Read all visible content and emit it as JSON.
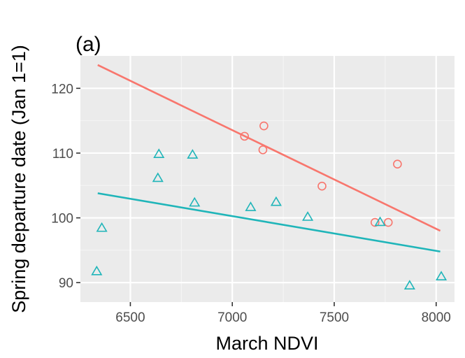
{
  "chart_data": {
    "type": "scatter",
    "title": "(a)",
    "xlabel": "March NDVI",
    "ylabel": "Spring departure date (Jan 1=1)",
    "xlim": [
      6255,
      8090
    ],
    "ylim": [
      87,
      125
    ],
    "x_ticks": [
      6500,
      7000,
      7500,
      8000
    ],
    "y_ticks": [
      90,
      100,
      110,
      120
    ],
    "x_tick_labels": [
      "6500",
      "7000",
      "7500",
      "8000"
    ],
    "y_tick_labels": [
      "90",
      "100",
      "110",
      "120"
    ],
    "grid": true,
    "legend": "none",
    "series": [
      {
        "marker": "circle",
        "color": "#F8766D",
        "points": [
          {
            "x": 7060,
            "y": 112.6
          },
          {
            "x": 7155,
            "y": 114.2
          },
          {
            "x": 7150,
            "y": 110.5
          },
          {
            "x": 7440,
            "y": 104.9
          },
          {
            "x": 7700,
            "y": 99.3
          },
          {
            "x": 7765,
            "y": 99.3
          },
          {
            "x": 7810,
            "y": 108.3
          }
        ],
        "fit_line": {
          "x": [
            6340,
            8020
          ],
          "y": [
            123.6,
            98.0
          ]
        }
      },
      {
        "marker": "triangle",
        "color": "#1FB5B9",
        "points": [
          {
            "x": 6335,
            "y": 91.7
          },
          {
            "x": 6360,
            "y": 98.4
          },
          {
            "x": 6635,
            "y": 106.1
          },
          {
            "x": 6640,
            "y": 109.8
          },
          {
            "x": 6805,
            "y": 109.7
          },
          {
            "x": 6815,
            "y": 102.3
          },
          {
            "x": 7090,
            "y": 101.6
          },
          {
            "x": 7215,
            "y": 102.4
          },
          {
            "x": 7370,
            "y": 100.1
          },
          {
            "x": 7725,
            "y": 99.3
          },
          {
            "x": 7870,
            "y": 89.5
          },
          {
            "x": 8025,
            "y": 90.9
          }
        ],
        "fit_line": {
          "x": [
            6340,
            8020
          ],
          "y": [
            103.8,
            94.8
          ]
        }
      }
    ]
  }
}
